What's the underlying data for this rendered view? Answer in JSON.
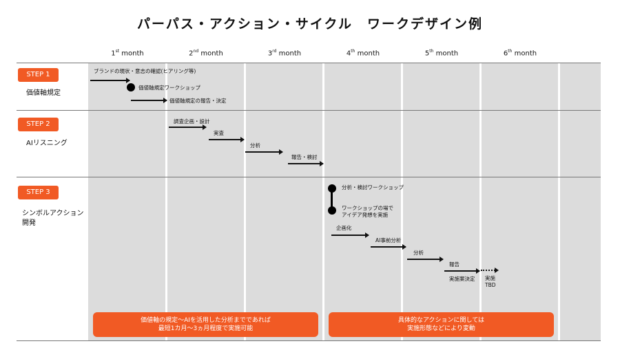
{
  "title": "パーパス・アクション・サイクル　ワークデザイン例",
  "months": [
    {
      "num": "1",
      "sup": "st",
      "word": " month"
    },
    {
      "num": "2",
      "sup": "nd",
      "word": " month"
    },
    {
      "num": "3",
      "sup": "rd",
      "word": " month"
    },
    {
      "num": "4",
      "sup": "th",
      "word": " month"
    },
    {
      "num": "5",
      "sup": "th",
      "word": " month"
    },
    {
      "num": "6",
      "sup": "th",
      "word": " month"
    }
  ],
  "steps": [
    {
      "badge": "STEP 1",
      "label": "価値軸規定"
    },
    {
      "badge": "STEP 2",
      "label": "AIリスニング"
    },
    {
      "badge": "STEP 3",
      "label_line1": "シンボルアクション",
      "label_line2": "開発"
    }
  ],
  "step1": {
    "t1": "ブランドの現状・意志の確認(ヒアリング等)",
    "t2": "価値軸規定ワークショップ",
    "t3": "価値軸規定の報告・決定"
  },
  "step2": {
    "t1": "調査企画・設計",
    "t2": "実査",
    "t3": "分析",
    "t4": "報告・検討"
  },
  "step3": {
    "t1": "分析・検討ワークショップ",
    "t2a": "ワークショップの場で",
    "t2b": "アイデア発想を実施",
    "t3": "企画化",
    "t4": "AI事前分析",
    "t5": "分析",
    "t6": "報告",
    "t7": "実施案決定",
    "t8a": "実施",
    "t8b": "TBD"
  },
  "notes": [
    {
      "line1": "価値軸の規定～AIを活用した分析までであれば",
      "line2": "最短1カ月～3ヵ月程度で実施可能"
    },
    {
      "line1": "具体的なアクションに関しては",
      "line2": "実施形態などにより変動"
    }
  ],
  "colors": {
    "accent": "#f15a24",
    "grid": "#dcdcdc"
  }
}
